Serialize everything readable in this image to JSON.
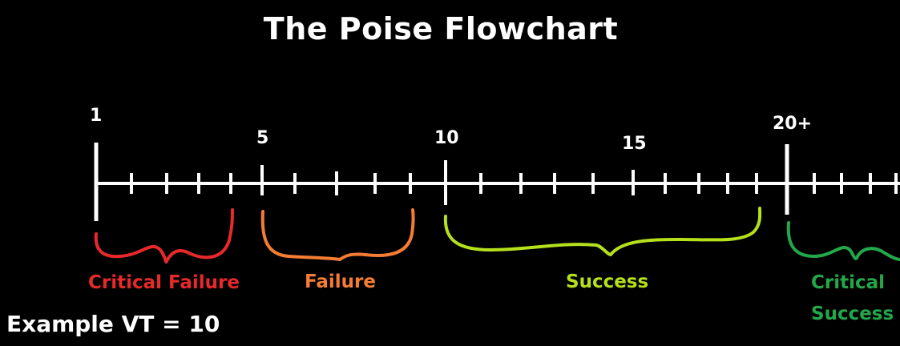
{
  "title": "The Poise Flowchart",
  "scale": {
    "markers": [
      {
        "text": "1"
      },
      {
        "text": "5"
      },
      {
        "text": "10"
      },
      {
        "text": "15"
      },
      {
        "text": "20+"
      }
    ]
  },
  "ranges": [
    {
      "label": "Critical Failure",
      "color": "#e8282a"
    },
    {
      "label": "Failure",
      "color": "#f47c33"
    },
    {
      "label": "Success",
      "color": "#b4e01c"
    },
    {
      "label_line1": "Critical",
      "label_line2": "Success",
      "color": "#22a84a"
    }
  ],
  "example": "Example VT = 10"
}
